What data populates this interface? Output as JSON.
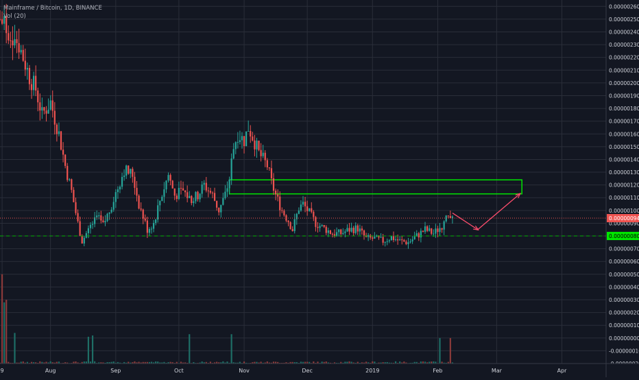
{
  "legend": {
    "title": "Mainframe / Bitcoin, 1D, BINANCE",
    "volume_label": "Vol (20)"
  },
  "price_axis": {
    "ticks": [
      "0.00000260",
      "0.00000250",
      "0.00000240",
      "0.00000230",
      "0.00000220",
      "0.00000210",
      "0.00000200",
      "0.00000190",
      "0.00000180",
      "0.00000170",
      "0.00000160",
      "0.00000150",
      "0.00000140",
      "0.00000130",
      "0.00000120",
      "0.00000110",
      "0.00000100",
      "0.00000090",
      "0.00000080",
      "0.00000070",
      "0.00000060",
      "0.00000050",
      "0.00000040",
      "0.00000030",
      "0.00000020",
      "0.00000010",
      "0.00000000",
      "-0.00000010",
      "-0.00000020"
    ],
    "current_price": "0.00000094",
    "support_price": "0.00000080"
  },
  "time_axis": {
    "ticks": [
      "9",
      "Aug",
      "Sep",
      "Oct",
      "Nov",
      "Dec",
      "2019",
      "Feb",
      "Mar",
      "Apr"
    ]
  },
  "colors": {
    "background": "#131722",
    "grid": "#2a2e39",
    "up": "#26a69a",
    "down": "#ef5350",
    "vol_up": "#1e6e66",
    "vol_down": "#8a3a3a",
    "zone": "#00e600",
    "support_line": "#00b300",
    "support_badge": "#00e600",
    "price_line": "#ef5350",
    "arrow": "#ff4d6d"
  },
  "chart_data": {
    "type": "candlestick",
    "symbol": "Mainframe / Bitcoin",
    "interval": "1D",
    "exchange": "BINANCE",
    "ylim": [
      -2e-07,
      2.65e-06
    ],
    "x_range": [
      "2018-07-08",
      "2019-04-22"
    ],
    "price_path": [
      [
        "2018-07-08",
        2.5e-06
      ],
      [
        "2018-07-10",
        2.45e-06
      ],
      [
        "2018-07-14",
        2.38e-06
      ],
      [
        "2018-07-17",
        2.3e-06
      ],
      [
        "2018-07-22",
        2.05e-06
      ],
      [
        "2018-07-25",
        1.95e-06
      ],
      [
        "2018-07-28",
        1.75e-06
      ],
      [
        "2018-08-01",
        1.85e-06
      ],
      [
        "2018-08-05",
        1.6e-06
      ],
      [
        "2018-08-08",
        1.35e-06
      ],
      [
        "2018-08-11",
        1.15e-06
      ],
      [
        "2018-08-14",
        9e-07
      ],
      [
        "2018-08-16",
        7.6e-07
      ],
      [
        "2018-08-19",
        8.5e-07
      ],
      [
        "2018-08-23",
        9.5e-07
      ],
      [
        "2018-08-26",
        8.8e-07
      ],
      [
        "2018-08-29",
        1e-06
      ],
      [
        "2018-09-02",
        1.18e-06
      ],
      [
        "2018-09-05",
        1.32e-06
      ],
      [
        "2018-09-09",
        1.28e-06
      ],
      [
        "2018-09-12",
        1.05e-06
      ],
      [
        "2018-09-16",
        8.5e-07
      ],
      [
        "2018-09-19",
        9e-07
      ],
      [
        "2018-09-22",
        1.08e-06
      ],
      [
        "2018-09-26",
        1.28e-06
      ],
      [
        "2018-09-29",
        1.12e-06
      ],
      [
        "2018-10-03",
        1.15e-06
      ],
      [
        "2018-10-07",
        1.08e-06
      ],
      [
        "2018-10-10",
        1.12e-06
      ],
      [
        "2018-10-13",
        1.2e-06
      ],
      [
        "2018-10-17",
        1.12e-06
      ],
      [
        "2018-10-20",
        1e-06
      ],
      [
        "2018-10-23",
        1.12e-06
      ],
      [
        "2018-10-25",
        1.25e-06
      ],
      [
        "2018-10-27",
        1.5e-06
      ],
      [
        "2018-10-29",
        1.6e-06
      ],
      [
        "2018-11-01",
        1.55e-06
      ],
      [
        "2018-11-03",
        1.65e-06
      ],
      [
        "2018-11-05",
        1.58e-06
      ],
      [
        "2018-11-08",
        1.45e-06
      ],
      [
        "2018-11-12",
        1.35e-06
      ],
      [
        "2018-11-14",
        1.22e-06
      ],
      [
        "2018-11-16",
        1.12e-06
      ],
      [
        "2018-11-19",
        1e-06
      ],
      [
        "2018-11-22",
        9.2e-07
      ],
      [
        "2018-11-24",
        8.5e-07
      ],
      [
        "2018-11-27",
        1.02e-06
      ],
      [
        "2018-11-29",
        1.05e-06
      ],
      [
        "2018-12-02",
        9.8e-07
      ],
      [
        "2018-12-05",
        9e-07
      ],
      [
        "2018-12-09",
        8.6e-07
      ],
      [
        "2018-12-13",
        8.2e-07
      ],
      [
        "2018-12-17",
        8.2e-07
      ],
      [
        "2018-12-21",
        8.5e-07
      ],
      [
        "2018-12-25",
        8.6e-07
      ],
      [
        "2018-12-29",
        7.8e-07
      ],
      [
        "2019-01-02",
        7.8e-07
      ],
      [
        "2019-01-06",
        7.6e-07
      ],
      [
        "2019-01-10",
        7.9e-07
      ],
      [
        "2019-01-14",
        7.6e-07
      ],
      [
        "2019-01-18",
        7.5e-07
      ],
      [
        "2019-01-22",
        8e-07
      ],
      [
        "2019-01-26",
        8.5e-07
      ],
      [
        "2019-01-30",
        8.2e-07
      ],
      [
        "2019-02-03",
        8.8e-07
      ],
      [
        "2019-02-07",
        9.8e-07
      ],
      [
        "2019-02-08",
        9.4e-07
      ]
    ],
    "volume_spikes": [
      [
        "2018-07-09",
        5e-07
      ],
      [
        "2018-07-10",
        2.8e-07
      ],
      [
        "2018-07-11",
        3e-07
      ],
      [
        "2018-07-15",
        4e-08
      ],
      [
        "2018-08-19",
        1e-08
      ],
      [
        "2018-08-21",
        2e-08
      ],
      [
        "2018-10-06",
        3e-08
      ],
      [
        "2018-10-26",
        3e-08
      ],
      [
        "2019-02-02",
        0.0
      ],
      [
        "2019-02-07",
        0.0
      ]
    ],
    "annotations": {
      "resistance_zone": {
        "start": "2018-10-25",
        "end": "2019-03-13",
        "high": 1.24e-06,
        "low": 1.13e-06
      },
      "support_level": 8e-07,
      "current_price": 9.4e-07,
      "projection": [
        [
          "2019-02-08",
          9.8e-07
        ],
        [
          "2019-02-20",
          8.5e-07
        ],
        [
          "2019-03-12",
          1.13e-06
        ]
      ]
    }
  }
}
